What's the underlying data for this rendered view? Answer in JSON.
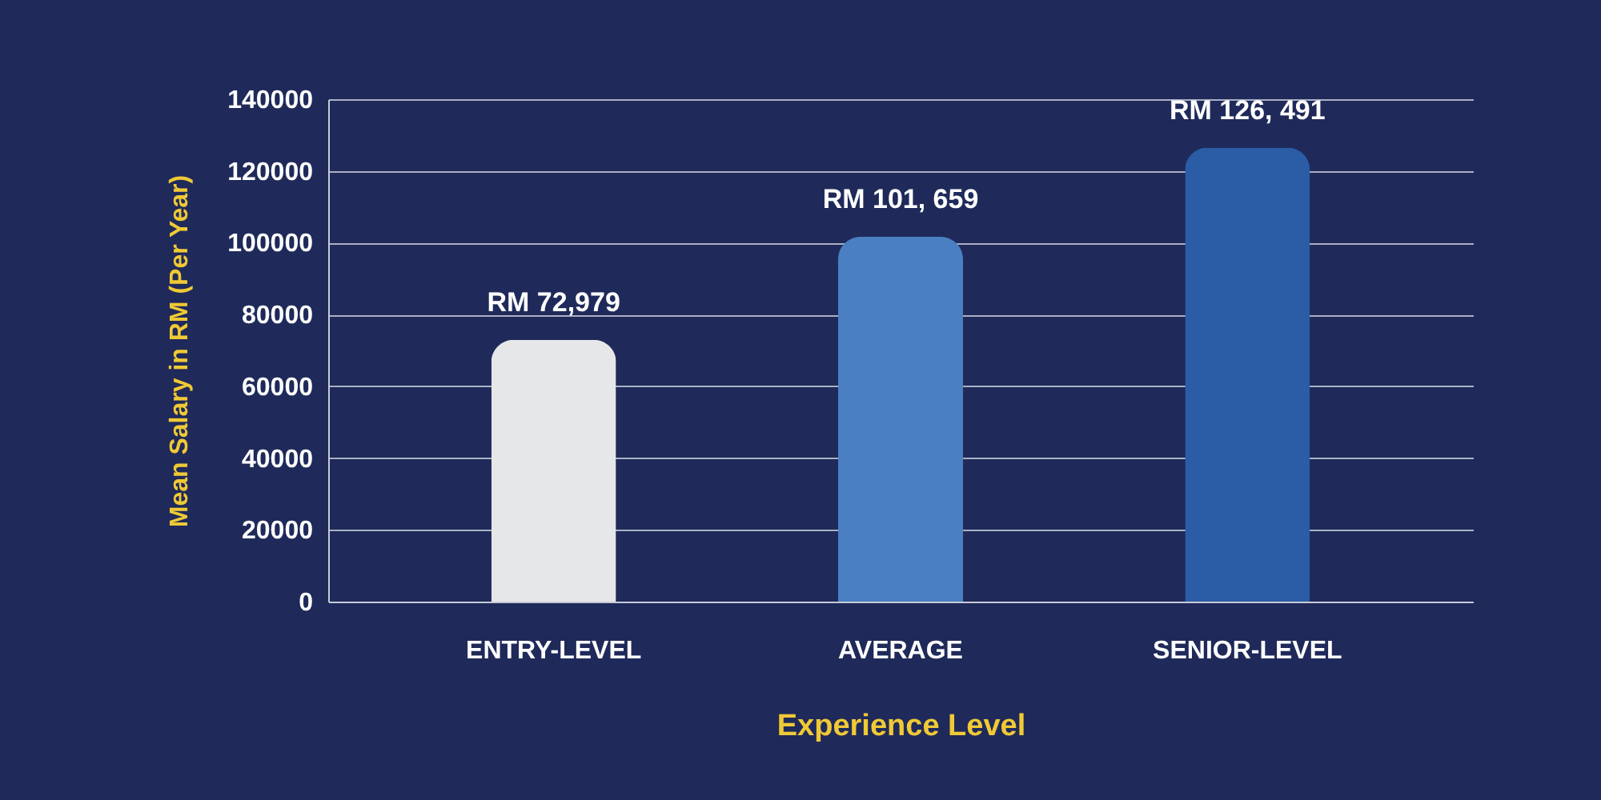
{
  "chart_data": {
    "type": "bar",
    "xlabel": "Experience Level",
    "ylabel": "Mean Salary in RM (Per Year)",
    "categories": [
      "ENTRY-LEVEL",
      "AVERAGE",
      "SENIOR-LEVEL"
    ],
    "values": [
      72979,
      101659,
      126491
    ],
    "value_labels": [
      "RM 72,979",
      "RM 101, 659",
      "RM 126, 491"
    ],
    "colors": [
      "#e6e7e8",
      "#4a80c2",
      "#2b5ca6"
    ],
    "ylim": [
      0,
      140000
    ],
    "yticks": [
      0,
      20000,
      40000,
      60000,
      80000,
      100000,
      120000,
      140000
    ],
    "grid": "y",
    "legend": false
  }
}
